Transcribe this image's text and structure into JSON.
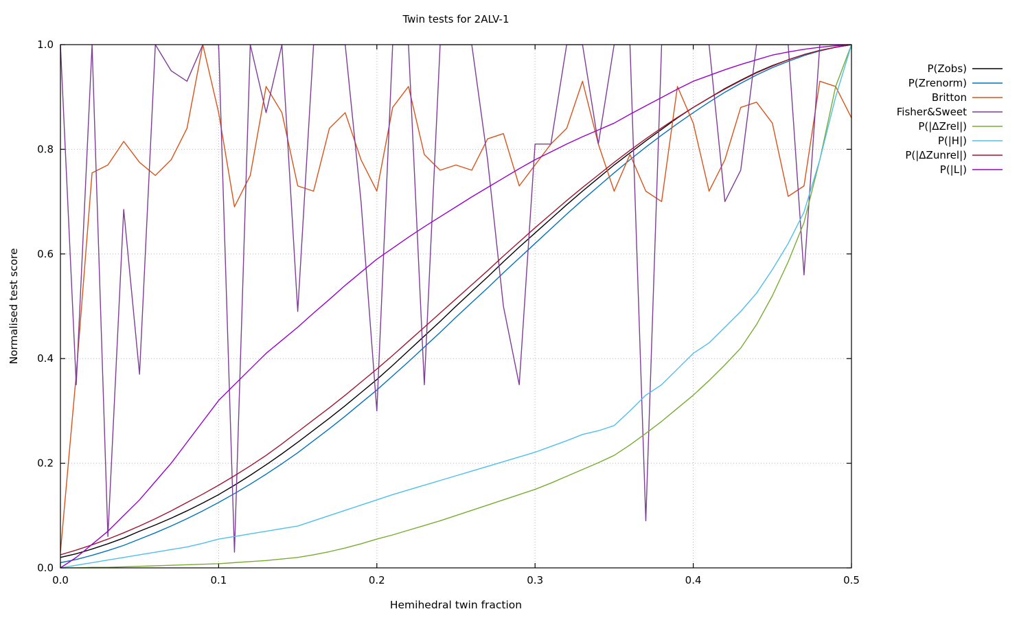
{
  "chart_data": {
    "type": "line",
    "title": "Twin tests for 2ALV-1",
    "xlabel": "Hemihedral twin fraction",
    "ylabel": "Normalised test score",
    "xlim": [
      0,
      0.5
    ],
    "ylim": [
      0.0,
      1.0
    ],
    "xticks": [
      0.0,
      0.1,
      0.2,
      0.3,
      0.4,
      0.5
    ],
    "yticks": [
      0.0,
      0.2,
      0.4,
      0.6,
      0.8,
      1.0
    ],
    "grid": true,
    "grid_style": "dotted",
    "grid_color": "#b8b8b8",
    "legend_position": "outside-right-top",
    "x": [
      0,
      0.01,
      0.02,
      0.03,
      0.04,
      0.05,
      0.06,
      0.07,
      0.08,
      0.09,
      0.1,
      0.11,
      0.12,
      0.13,
      0.14,
      0.15,
      0.16,
      0.17,
      0.18,
      0.19,
      0.2,
      0.21,
      0.22,
      0.23,
      0.24,
      0.25,
      0.26,
      0.27,
      0.28,
      0.29,
      0.3,
      0.31,
      0.32,
      0.33,
      0.34,
      0.35,
      0.36,
      0.37,
      0.38,
      0.39,
      0.4,
      0.41,
      0.42,
      0.43,
      0.44,
      0.45,
      0.46,
      0.47,
      0.48,
      0.49,
      0.5
    ],
    "series": [
      {
        "name": "P(Zobs)",
        "color": "#000000",
        "values": [
          0.02,
          0.027,
          0.036,
          0.046,
          0.057,
          0.07,
          0.082,
          0.095,
          0.109,
          0.124,
          0.14,
          0.158,
          0.177,
          0.197,
          0.218,
          0.24,
          0.263,
          0.286,
          0.31,
          0.335,
          0.36,
          0.387,
          0.415,
          0.443,
          0.471,
          0.5,
          0.528,
          0.556,
          0.585,
          0.613,
          0.64,
          0.667,
          0.694,
          0.72,
          0.745,
          0.77,
          0.793,
          0.816,
          0.838,
          0.86,
          0.88,
          0.898,
          0.916,
          0.932,
          0.947,
          0.96,
          0.971,
          0.981,
          0.989,
          0.995,
          1.0
        ]
      },
      {
        "name": "P(Zrenorm)",
        "color": "#0072bd",
        "values": [
          0.01,
          0.016,
          0.024,
          0.033,
          0.043,
          0.055,
          0.067,
          0.08,
          0.094,
          0.109,
          0.125,
          0.142,
          0.16,
          0.179,
          0.199,
          0.22,
          0.243,
          0.266,
          0.29,
          0.315,
          0.34,
          0.367,
          0.394,
          0.422,
          0.45,
          0.479,
          0.507,
          0.535,
          0.564,
          0.592,
          0.62,
          0.648,
          0.676,
          0.703,
          0.729,
          0.755,
          0.78,
          0.804,
          0.827,
          0.849,
          0.87,
          0.89,
          0.909,
          0.926,
          0.942,
          0.956,
          0.968,
          0.979,
          0.988,
          0.995,
          1.0
        ]
      },
      {
        "name": "Britton",
        "color": "#d95319",
        "values": [
          0.03,
          0.37,
          0.755,
          0.77,
          0.815,
          0.775,
          0.75,
          0.78,
          0.84,
          1.0,
          0.87,
          0.69,
          0.75,
          0.92,
          0.87,
          0.73,
          0.72,
          0.84,
          0.87,
          0.78,
          0.72,
          0.88,
          0.92,
          0.79,
          0.76,
          0.77,
          0.76,
          0.82,
          0.83,
          0.73,
          0.77,
          0.81,
          0.84,
          0.93,
          0.81,
          0.72,
          0.79,
          0.72,
          0.7,
          0.92,
          0.85,
          0.72,
          0.78,
          0.88,
          0.89,
          0.85,
          0.71,
          0.73,
          0.93,
          0.92,
          0.86
        ]
      },
      {
        "name": "Fisher&Sweet",
        "color": "#7d3c98",
        "values": [
          1.0,
          0.35,
          1.0,
          0.06,
          0.685,
          0.37,
          1.0,
          0.95,
          0.93,
          1.0,
          1.0,
          0.03,
          1.0,
          0.87,
          1.0,
          0.49,
          1.0,
          1.0,
          1.0,
          0.7,
          0.3,
          1.0,
          1.0,
          0.35,
          1.0,
          1.0,
          1.0,
          0.78,
          0.5,
          0.35,
          0.81,
          0.81,
          1.0,
          1.0,
          0.81,
          1.0,
          1.0,
          0.09,
          1.0,
          1.0,
          1.0,
          1.0,
          0.7,
          0.76,
          1.0,
          1.0,
          1.0,
          0.56,
          1.0,
          1.0,
          1.0
        ]
      },
      {
        "name": "P(|ΔZrel|)",
        "color": "#77ac30",
        "values": [
          0.0,
          0.0,
          0.001,
          0.001,
          0.002,
          0.003,
          0.004,
          0.005,
          0.006,
          0.007,
          0.008,
          0.01,
          0.012,
          0.014,
          0.017,
          0.02,
          0.025,
          0.031,
          0.038,
          0.046,
          0.055,
          0.063,
          0.072,
          0.081,
          0.09,
          0.1,
          0.11,
          0.12,
          0.13,
          0.14,
          0.15,
          0.162,
          0.175,
          0.188,
          0.201,
          0.215,
          0.235,
          0.257,
          0.28,
          0.305,
          0.33,
          0.358,
          0.388,
          0.42,
          0.465,
          0.52,
          0.585,
          0.66,
          0.78,
          0.92,
          1.0
        ]
      },
      {
        "name": "P(|H|)",
        "color": "#4dbeee",
        "values": [
          0.0,
          0.005,
          0.01,
          0.015,
          0.02,
          0.025,
          0.03,
          0.035,
          0.04,
          0.047,
          0.055,
          0.06,
          0.065,
          0.07,
          0.075,
          0.08,
          0.09,
          0.1,
          0.11,
          0.12,
          0.13,
          0.14,
          0.149,
          0.158,
          0.167,
          0.176,
          0.185,
          0.194,
          0.203,
          0.212,
          0.221,
          0.232,
          0.243,
          0.255,
          0.262,
          0.272,
          0.3,
          0.33,
          0.35,
          0.38,
          0.41,
          0.43,
          0.46,
          0.49,
          0.525,
          0.57,
          0.62,
          0.68,
          0.78,
          0.9,
          1.0
        ]
      },
      {
        "name": "P(|ΔZunrel|)",
        "color": "#a2142f",
        "values": [
          0.025,
          0.034,
          0.044,
          0.055,
          0.067,
          0.08,
          0.094,
          0.109,
          0.125,
          0.141,
          0.158,
          0.176,
          0.195,
          0.215,
          0.237,
          0.26,
          0.283,
          0.306,
          0.33,
          0.355,
          0.38,
          0.406,
          0.433,
          0.46,
          0.487,
          0.514,
          0.541,
          0.568,
          0.596,
          0.623,
          0.65,
          0.676,
          0.702,
          0.727,
          0.751,
          0.775,
          0.798,
          0.82,
          0.841,
          0.861,
          0.88,
          0.898,
          0.915,
          0.931,
          0.946,
          0.959,
          0.971,
          0.981,
          0.989,
          0.995,
          1.0
        ]
      },
      {
        "name": "P(|L|)",
        "color": "#9900cc",
        "values": [
          0.0,
          0.02,
          0.045,
          0.07,
          0.1,
          0.13,
          0.165,
          0.2,
          0.24,
          0.28,
          0.32,
          0.35,
          0.38,
          0.41,
          0.435,
          0.46,
          0.487,
          0.513,
          0.54,
          0.565,
          0.59,
          0.611,
          0.632,
          0.652,
          0.671,
          0.69,
          0.709,
          0.727,
          0.745,
          0.763,
          0.78,
          0.795,
          0.81,
          0.824,
          0.837,
          0.85,
          0.867,
          0.883,
          0.899,
          0.915,
          0.93,
          0.941,
          0.952,
          0.962,
          0.971,
          0.98,
          0.986,
          0.991,
          0.995,
          0.998,
          1.0
        ]
      }
    ]
  }
}
